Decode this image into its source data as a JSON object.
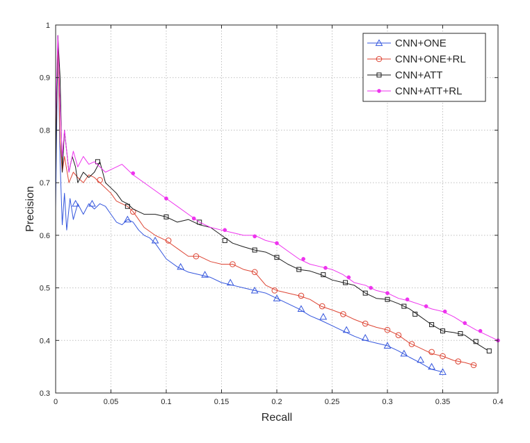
{
  "chart_data": {
    "type": "line",
    "title": "",
    "xlabel": "Recall",
    "ylabel": "Precision",
    "xlim": [
      0,
      0.4
    ],
    "ylim": [
      0.3,
      1
    ],
    "xticks": [
      0,
      0.05,
      0.1,
      0.15,
      0.2,
      0.25,
      0.3,
      0.35,
      0.4
    ],
    "xtick_labels": [
      "0",
      "0.05",
      "0.1",
      "0.15",
      "0.2",
      "0.25",
      "0.3",
      "0.35",
      "0.4"
    ],
    "yticks": [
      0.3,
      0.4,
      0.5,
      0.6,
      0.7,
      0.8,
      0.9,
      1
    ],
    "ytick_labels": [
      "0.3",
      "0.4",
      "0.5",
      "0.6",
      "0.7",
      "0.8",
      "0.9",
      "1"
    ],
    "grid": true,
    "legend_position": "top-right",
    "series": [
      {
        "name": "CNN+ONE",
        "color": "#3355dd",
        "marker": "triangle",
        "points": [
          [
            0,
            0.65
          ],
          [
            0.002,
            0.98
          ],
          [
            0.004,
            0.74
          ],
          [
            0.006,
            0.62
          ],
          [
            0.008,
            0.68
          ],
          [
            0.01,
            0.61
          ],
          [
            0.013,
            0.67
          ],
          [
            0.016,
            0.63
          ],
          [
            0.02,
            0.66
          ],
          [
            0.025,
            0.64
          ],
          [
            0.03,
            0.66
          ],
          [
            0.035,
            0.65
          ],
          [
            0.04,
            0.66
          ],
          [
            0.045,
            0.655
          ],
          [
            0.05,
            0.64
          ],
          [
            0.055,
            0.625
          ],
          [
            0.06,
            0.62
          ],
          [
            0.065,
            0.63
          ],
          [
            0.07,
            0.625
          ],
          [
            0.075,
            0.61
          ],
          [
            0.08,
            0.6
          ],
          [
            0.085,
            0.595
          ],
          [
            0.09,
            0.585
          ],
          [
            0.1,
            0.555
          ],
          [
            0.11,
            0.54
          ],
          [
            0.12,
            0.53
          ],
          [
            0.13,
            0.525
          ],
          [
            0.14,
            0.52
          ],
          [
            0.15,
            0.51
          ],
          [
            0.16,
            0.505
          ],
          [
            0.17,
            0.5
          ],
          [
            0.18,
            0.495
          ],
          [
            0.19,
            0.49
          ],
          [
            0.2,
            0.48
          ],
          [
            0.21,
            0.47
          ],
          [
            0.22,
            0.46
          ],
          [
            0.23,
            0.447
          ],
          [
            0.24,
            0.438
          ],
          [
            0.25,
            0.428
          ],
          [
            0.26,
            0.418
          ],
          [
            0.27,
            0.408
          ],
          [
            0.28,
            0.4
          ],
          [
            0.29,
            0.395
          ],
          [
            0.3,
            0.39
          ],
          [
            0.31,
            0.38
          ],
          [
            0.32,
            0.368
          ],
          [
            0.33,
            0.357
          ],
          [
            0.34,
            0.345
          ],
          [
            0.35,
            0.34
          ]
        ],
        "marker_points": [
          [
            0.018,
            0.66
          ],
          [
            0.033,
            0.66
          ],
          [
            0.065,
            0.63
          ],
          [
            0.09,
            0.59
          ],
          [
            0.113,
            0.54
          ],
          [
            0.135,
            0.525
          ],
          [
            0.158,
            0.51
          ],
          [
            0.18,
            0.495
          ],
          [
            0.2,
            0.48
          ],
          [
            0.222,
            0.46
          ],
          [
            0.242,
            0.445
          ],
          [
            0.263,
            0.42
          ],
          [
            0.28,
            0.405
          ],
          [
            0.3,
            0.39
          ],
          [
            0.315,
            0.375
          ],
          [
            0.33,
            0.363
          ],
          [
            0.34,
            0.35
          ],
          [
            0.35,
            0.34
          ]
        ]
      },
      {
        "name": "CNN+ONE+RL",
        "color": "#dd4433",
        "marker": "circle",
        "points": [
          [
            0,
            0.75
          ],
          [
            0.002,
            0.97
          ],
          [
            0.004,
            0.78
          ],
          [
            0.006,
            0.72
          ],
          [
            0.008,
            0.75
          ],
          [
            0.012,
            0.7
          ],
          [
            0.016,
            0.72
          ],
          [
            0.02,
            0.71
          ],
          [
            0.025,
            0.7
          ],
          [
            0.03,
            0.715
          ],
          [
            0.035,
            0.71
          ],
          [
            0.04,
            0.7
          ],
          [
            0.045,
            0.69
          ],
          [
            0.05,
            0.68
          ],
          [
            0.055,
            0.665
          ],
          [
            0.06,
            0.66
          ],
          [
            0.065,
            0.655
          ],
          [
            0.07,
            0.645
          ],
          [
            0.075,
            0.63
          ],
          [
            0.08,
            0.615
          ],
          [
            0.09,
            0.6
          ],
          [
            0.1,
            0.59
          ],
          [
            0.11,
            0.575
          ],
          [
            0.12,
            0.56
          ],
          [
            0.13,
            0.56
          ],
          [
            0.14,
            0.55
          ],
          [
            0.15,
            0.545
          ],
          [
            0.16,
            0.545
          ],
          [
            0.17,
            0.535
          ],
          [
            0.18,
            0.53
          ],
          [
            0.19,
            0.505
          ],
          [
            0.2,
            0.495
          ],
          [
            0.21,
            0.49
          ],
          [
            0.22,
            0.485
          ],
          [
            0.23,
            0.478
          ],
          [
            0.24,
            0.465
          ],
          [
            0.25,
            0.458
          ],
          [
            0.26,
            0.45
          ],
          [
            0.27,
            0.44
          ],
          [
            0.28,
            0.432
          ],
          [
            0.29,
            0.425
          ],
          [
            0.3,
            0.42
          ],
          [
            0.31,
            0.41
          ],
          [
            0.32,
            0.395
          ],
          [
            0.33,
            0.385
          ],
          [
            0.34,
            0.375
          ],
          [
            0.35,
            0.37
          ],
          [
            0.36,
            0.362
          ],
          [
            0.37,
            0.358
          ],
          [
            0.38,
            0.352
          ]
        ],
        "marker_points": [
          [
            0.04,
            0.705
          ],
          [
            0.07,
            0.645
          ],
          [
            0.102,
            0.59
          ],
          [
            0.127,
            0.56
          ],
          [
            0.16,
            0.545
          ],
          [
            0.18,
            0.53
          ],
          [
            0.198,
            0.495
          ],
          [
            0.222,
            0.485
          ],
          [
            0.241,
            0.465
          ],
          [
            0.26,
            0.45
          ],
          [
            0.28,
            0.432
          ],
          [
            0.3,
            0.42
          ],
          [
            0.31,
            0.41
          ],
          [
            0.322,
            0.393
          ],
          [
            0.34,
            0.378
          ],
          [
            0.35,
            0.37
          ],
          [
            0.364,
            0.36
          ],
          [
            0.378,
            0.353
          ]
        ]
      },
      {
        "name": "CNN+ATT",
        "color": "#1a1a1a",
        "marker": "square",
        "points": [
          [
            0,
            0.72
          ],
          [
            0.002,
            0.98
          ],
          [
            0.004,
            0.9
          ],
          [
            0.006,
            0.72
          ],
          [
            0.008,
            0.8
          ],
          [
            0.01,
            0.76
          ],
          [
            0.012,
            0.72
          ],
          [
            0.015,
            0.75
          ],
          [
            0.018,
            0.73
          ],
          [
            0.02,
            0.7
          ],
          [
            0.025,
            0.72
          ],
          [
            0.03,
            0.71
          ],
          [
            0.035,
            0.72
          ],
          [
            0.04,
            0.74
          ],
          [
            0.045,
            0.7
          ],
          [
            0.05,
            0.69
          ],
          [
            0.055,
            0.68
          ],
          [
            0.06,
            0.665
          ],
          [
            0.065,
            0.66
          ],
          [
            0.07,
            0.65
          ],
          [
            0.075,
            0.645
          ],
          [
            0.08,
            0.64
          ],
          [
            0.09,
            0.64
          ],
          [
            0.1,
            0.635
          ],
          [
            0.11,
            0.625
          ],
          [
            0.12,
            0.63
          ],
          [
            0.13,
            0.62
          ],
          [
            0.14,
            0.615
          ],
          [
            0.15,
            0.6
          ],
          [
            0.16,
            0.585
          ],
          [
            0.17,
            0.578
          ],
          [
            0.18,
            0.572
          ],
          [
            0.19,
            0.568
          ],
          [
            0.2,
            0.558
          ],
          [
            0.21,
            0.545
          ],
          [
            0.22,
            0.535
          ],
          [
            0.23,
            0.532
          ],
          [
            0.24,
            0.525
          ],
          [
            0.25,
            0.515
          ],
          [
            0.26,
            0.51
          ],
          [
            0.27,
            0.505
          ],
          [
            0.28,
            0.49
          ],
          [
            0.29,
            0.48
          ],
          [
            0.3,
            0.478
          ],
          [
            0.31,
            0.47
          ],
          [
            0.32,
            0.46
          ],
          [
            0.33,
            0.445
          ],
          [
            0.34,
            0.43
          ],
          [
            0.35,
            0.418
          ],
          [
            0.36,
            0.415
          ],
          [
            0.37,
            0.41
          ],
          [
            0.38,
            0.395
          ],
          [
            0.39,
            0.382
          ]
        ],
        "marker_points": [
          [
            0.038,
            0.74
          ],
          [
            0.065,
            0.655
          ],
          [
            0.1,
            0.635
          ],
          [
            0.13,
            0.625
          ],
          [
            0.153,
            0.59
          ],
          [
            0.18,
            0.572
          ],
          [
            0.2,
            0.558
          ],
          [
            0.22,
            0.535
          ],
          [
            0.242,
            0.525
          ],
          [
            0.262,
            0.51
          ],
          [
            0.28,
            0.49
          ],
          [
            0.3,
            0.478
          ],
          [
            0.315,
            0.465
          ],
          [
            0.325,
            0.45
          ],
          [
            0.34,
            0.43
          ],
          [
            0.35,
            0.418
          ],
          [
            0.366,
            0.413
          ],
          [
            0.38,
            0.398
          ],
          [
            0.392,
            0.38
          ]
        ]
      },
      {
        "name": "CNN+ATT+RL",
        "color": "#ee33ee",
        "marker": "dot",
        "points": [
          [
            0,
            0.82
          ],
          [
            0.002,
            0.98
          ],
          [
            0.004,
            0.85
          ],
          [
            0.006,
            0.75
          ],
          [
            0.008,
            0.8
          ],
          [
            0.01,
            0.76
          ],
          [
            0.012,
            0.72
          ],
          [
            0.016,
            0.76
          ],
          [
            0.02,
            0.73
          ],
          [
            0.025,
            0.75
          ],
          [
            0.03,
            0.735
          ],
          [
            0.035,
            0.74
          ],
          [
            0.04,
            0.73
          ],
          [
            0.045,
            0.72
          ],
          [
            0.05,
            0.725
          ],
          [
            0.055,
            0.73
          ],
          [
            0.06,
            0.735
          ],
          [
            0.065,
            0.725
          ],
          [
            0.07,
            0.715
          ],
          [
            0.08,
            0.7
          ],
          [
            0.09,
            0.685
          ],
          [
            0.1,
            0.67
          ],
          [
            0.11,
            0.655
          ],
          [
            0.12,
            0.64
          ],
          [
            0.13,
            0.625
          ],
          [
            0.14,
            0.615
          ],
          [
            0.15,
            0.61
          ],
          [
            0.16,
            0.605
          ],
          [
            0.17,
            0.6
          ],
          [
            0.18,
            0.6
          ],
          [
            0.19,
            0.59
          ],
          [
            0.2,
            0.585
          ],
          [
            0.21,
            0.57
          ],
          [
            0.22,
            0.555
          ],
          [
            0.23,
            0.545
          ],
          [
            0.24,
            0.54
          ],
          [
            0.25,
            0.535
          ],
          [
            0.26,
            0.525
          ],
          [
            0.27,
            0.51
          ],
          [
            0.28,
            0.505
          ],
          [
            0.29,
            0.495
          ],
          [
            0.3,
            0.49
          ],
          [
            0.31,
            0.48
          ],
          [
            0.32,
            0.475
          ],
          [
            0.33,
            0.468
          ],
          [
            0.34,
            0.46
          ],
          [
            0.35,
            0.455
          ],
          [
            0.36,
            0.445
          ],
          [
            0.37,
            0.432
          ],
          [
            0.38,
            0.42
          ],
          [
            0.39,
            0.41
          ],
          [
            0.4,
            0.4
          ]
        ],
        "marker_points": [
          [
            0.07,
            0.718
          ],
          [
            0.1,
            0.67
          ],
          [
            0.125,
            0.632
          ],
          [
            0.153,
            0.61
          ],
          [
            0.18,
            0.598
          ],
          [
            0.2,
            0.585
          ],
          [
            0.224,
            0.555
          ],
          [
            0.244,
            0.538
          ],
          [
            0.265,
            0.52
          ],
          [
            0.285,
            0.5
          ],
          [
            0.3,
            0.49
          ],
          [
            0.318,
            0.478
          ],
          [
            0.335,
            0.465
          ],
          [
            0.352,
            0.455
          ],
          [
            0.37,
            0.433
          ],
          [
            0.384,
            0.418
          ],
          [
            0.4,
            0.4
          ]
        ]
      }
    ]
  }
}
